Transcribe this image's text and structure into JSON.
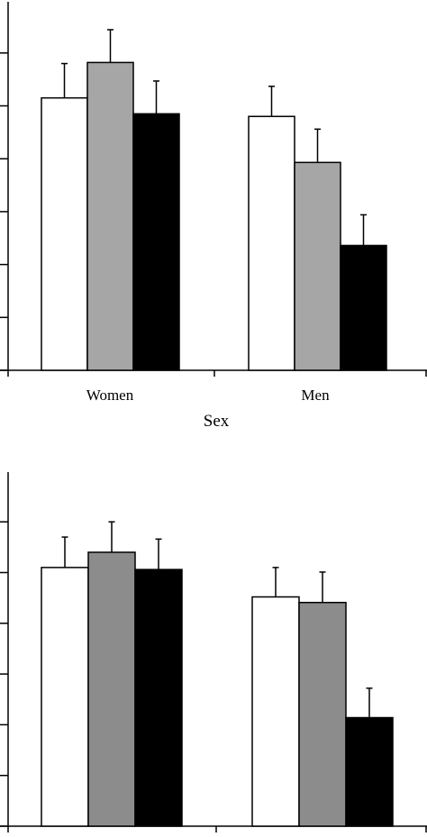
{
  "chart_data": [
    {
      "type": "bar",
      "title": "",
      "xlabel": "Sex",
      "ylabel": "",
      "categories": [
        "Women",
        "Men"
      ],
      "ylim": [
        0,
        7
      ],
      "yticks": [
        0,
        1,
        2,
        3,
        4,
        5,
        6,
        7
      ],
      "grid": false,
      "series": [
        {
          "color": "#ffffff",
          "values": [
            5.15,
            4.8
          ],
          "errors": [
            0.65,
            0.57
          ]
        },
        {
          "color": "#a6a6a6",
          "values": [
            5.82,
            3.93
          ],
          "errors": [
            0.62,
            0.63
          ]
        },
        {
          "color": "#000000",
          "values": [
            4.85,
            2.36
          ],
          "errors": [
            0.62,
            0.58
          ]
        }
      ]
    },
    {
      "type": "bar",
      "title": "",
      "xlabel": "",
      "ylabel": "",
      "categories": [
        "",
        ""
      ],
      "ylim": [
        0,
        7
      ],
      "yticks": [
        0,
        1,
        2,
        3,
        4,
        5,
        6,
        7
      ],
      "grid": false,
      "series": [
        {
          "color": "#ffffff",
          "values": [
            5.1,
            4.52
          ],
          "errors": [
            0.6,
            0.58
          ]
        },
        {
          "color": "#8c8c8c",
          "values": [
            5.4,
            4.41
          ],
          "errors": [
            0.6,
            0.6
          ]
        },
        {
          "color": "#000000",
          "values": [
            5.06,
            2.14
          ],
          "errors": [
            0.6,
            0.58
          ]
        }
      ]
    }
  ]
}
